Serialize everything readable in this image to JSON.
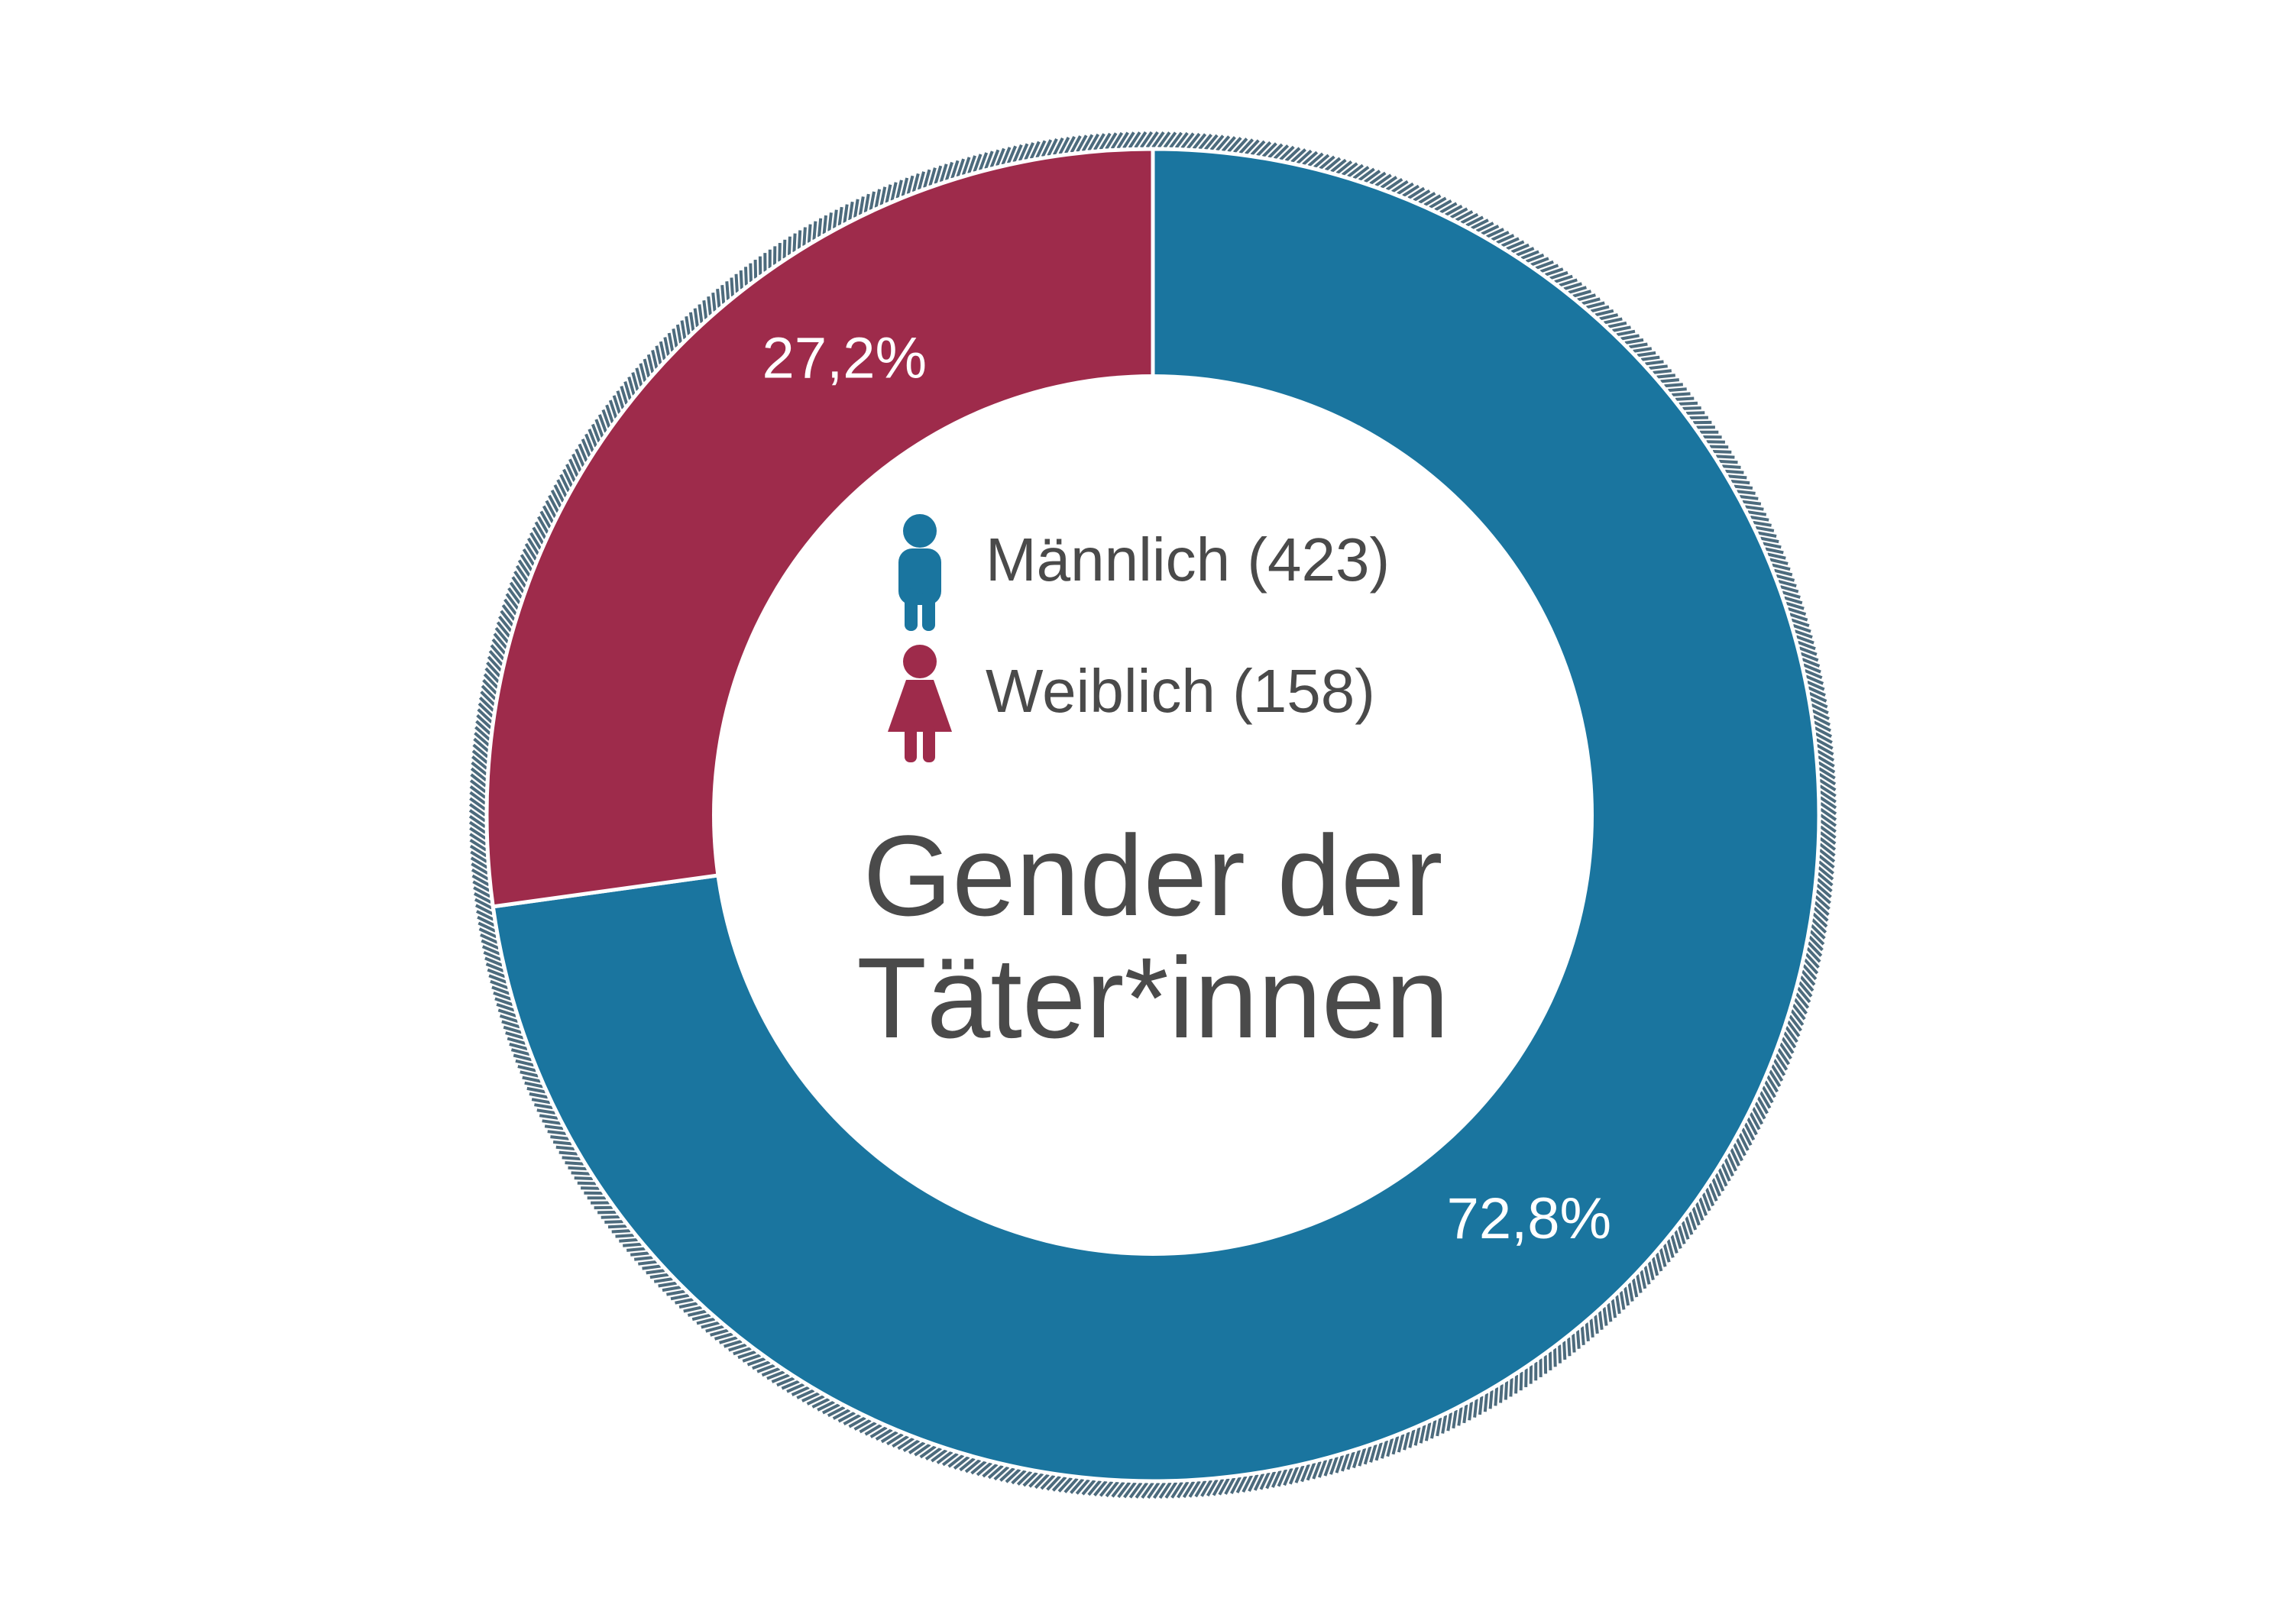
{
  "chart_data": {
    "type": "pie",
    "title_lines": [
      "Gender der",
      "Täter*innen"
    ],
    "slices": [
      {
        "name": "Männlich (423)",
        "value": 423,
        "percent": 72.8,
        "label": "72,8%",
        "color": "#1a759f",
        "icon": "male-figure-icon"
      },
      {
        "name": "Weiblich (158)",
        "value": 158,
        "percent": 27.2,
        "label": "27,2%",
        "color": "#9e2b4b",
        "icon": "female-figure-icon"
      }
    ],
    "start_angle_deg": 0,
    "direction": "clockwise",
    "legend_position": "center",
    "ring_border_color": "#4d6b7d"
  }
}
